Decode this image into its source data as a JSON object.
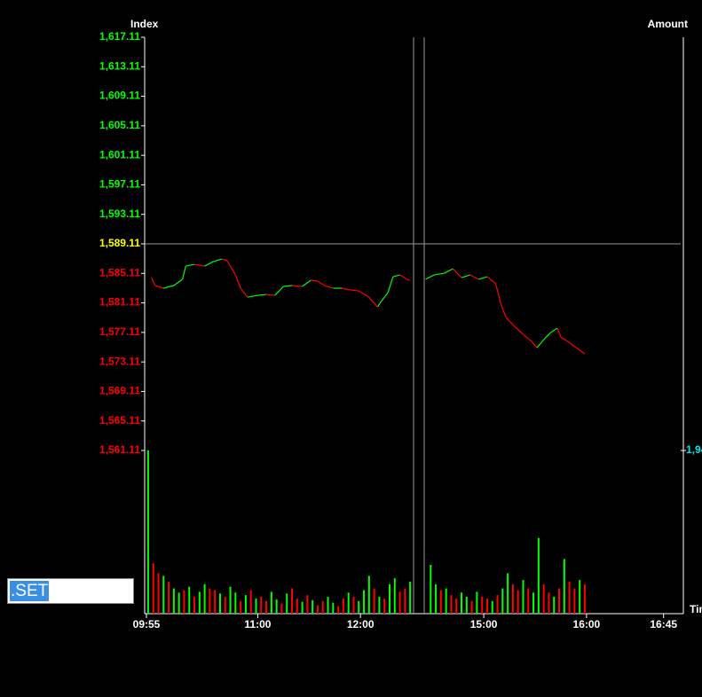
{
  "symbol": ".SET",
  "chart_data": {
    "type": "line",
    "y_axis_label": "Index",
    "y2_axis_label": "Amount",
    "x_axis_label": "Tim",
    "reference": 1589.11,
    "up_color": "#00ff00",
    "down_color": "#ff0000",
    "reference_color": "#ffff00",
    "y2_tick_color": "#00e5e5",
    "xlim": [
      0,
      312
    ],
    "xticks": [
      {
        "value": 0,
        "label": "09:55"
      },
      {
        "value": 65,
        "label": "11:00"
      },
      {
        "value": 125,
        "label": "12:00"
      },
      {
        "value": 197,
        "label": "15:00"
      },
      {
        "value": 257,
        "label": "16:00"
      },
      {
        "value": 302,
        "label": "16:45"
      }
    ],
    "ylim": [
      1561.11,
      1617.11
    ],
    "yticks": [
      {
        "value": 1617.11,
        "label": "1,617.11"
      },
      {
        "value": 1613.11,
        "label": "1,613.11"
      },
      {
        "value": 1609.11,
        "label": "1,609.11"
      },
      {
        "value": 1605.11,
        "label": "1,605.11"
      },
      {
        "value": 1601.11,
        "label": "1,601.11"
      },
      {
        "value": 1597.11,
        "label": "1,597.11"
      },
      {
        "value": 1593.11,
        "label": "1,593.11"
      },
      {
        "value": 1589.11,
        "label": "1,589.11"
      },
      {
        "value": 1585.11,
        "label": "1,585.11"
      },
      {
        "value": 1581.11,
        "label": "1,581.11"
      },
      {
        "value": 1577.11,
        "label": "1,577.11"
      },
      {
        "value": 1573.11,
        "label": "1,573.11"
      },
      {
        "value": 1569.11,
        "label": "1,569.11"
      },
      {
        "value": 1565.11,
        "label": "1,565.11"
      },
      {
        "value": 1561.11,
        "label": "1,561.11"
      }
    ],
    "y2lim": [
      0,
      1940
    ],
    "y2ticks": [
      {
        "value": 1940,
        "label": "1,94"
      }
    ],
    "x": [
      3,
      5,
      10,
      16,
      21,
      23,
      28,
      34,
      39,
      44,
      47,
      49,
      52,
      55,
      59,
      65,
      70,
      75,
      80,
      85,
      91,
      96,
      100,
      104,
      109,
      114,
      119,
      124,
      130,
      132,
      135,
      137,
      141,
      144,
      148,
      152,
      154,
      157,
      163,
      168,
      174,
      179,
      184,
      189,
      194,
      199,
      204,
      207,
      210,
      215,
      220,
      225,
      228,
      232,
      236,
      240,
      242,
      246,
      251,
      256
    ],
    "values": [
      1584.54,
      1583.46,
      1583.1,
      1583.46,
      1584.3,
      1586.1,
      1586.34,
      1586.1,
      1586.7,
      1587.06,
      1586.82,
      1586.1,
      1584.9,
      1583.1,
      1581.89,
      1582.13,
      1582.25,
      1582.13,
      1583.34,
      1583.46,
      1583.34,
      1584.18,
      1584.06,
      1583.46,
      1583.1,
      1583.1,
      1582.86,
      1582.73,
      1581.89,
      1581.29,
      1580.57,
      1581.29,
      1582.49,
      1584.66,
      1584.9,
      1584.3,
      1584.18,
      null,
      1584.3,
      1584.9,
      1585.14,
      1585.74,
      1584.54,
      1584.9,
      1584.3,
      1584.66,
      1583.7,
      1580.93,
      1579.13,
      1577.93,
      1576.85,
      1575.88,
      1575.04,
      1576.12,
      1577.09,
      1577.69,
      1576.48,
      1575.88,
      1575.04,
      1574.2
    ],
    "volume": {
      "axis": "y2",
      "x": [
        1,
        4,
        7,
        10,
        13,
        16,
        19,
        22,
        25,
        28,
        31,
        34,
        37,
        40,
        43,
        46,
        49,
        52,
        55,
        58,
        61,
        64,
        67,
        70,
        73,
        76,
        79,
        82,
        85,
        88,
        91,
        94,
        97,
        100,
        103,
        106,
        109,
        112,
        115,
        118,
        121,
        124,
        127,
        130,
        133,
        136,
        139,
        142,
        145,
        148,
        151,
        154,
        166,
        169,
        172,
        175,
        178,
        181,
        184,
        187,
        190,
        193,
        196,
        199,
        202,
        205,
        208,
        211,
        214,
        217,
        220,
        223,
        226,
        229,
        232,
        235,
        238,
        241,
        244,
        247,
        250,
        253,
        256
      ],
      "values": [
        1940,
        600,
        480,
        450,
        380,
        300,
        250,
        280,
        320,
        200,
        260,
        350,
        300,
        280,
        240,
        200,
        320,
        250,
        150,
        220,
        280,
        180,
        200,
        150,
        260,
        170,
        120,
        240,
        300,
        180,
        140,
        220,
        160,
        100,
        150,
        200,
        130,
        90,
        180,
        250,
        200,
        150,
        280,
        450,
        300,
        200,
        180,
        350,
        420,
        260,
        300,
        380,
        580,
        350,
        280,
        300,
        220,
        180,
        250,
        200,
        150,
        260,
        200,
        180,
        150,
        220,
        300,
        480,
        350,
        280,
        400,
        300,
        250,
        900,
        350,
        250,
        200,
        300,
        650,
        380,
        300,
        400,
        350
      ],
      "rising": [
        1,
        0,
        0,
        1,
        0,
        1,
        1,
        0,
        1,
        0,
        1,
        1,
        0,
        0,
        1,
        0,
        1,
        1,
        0,
        1,
        0,
        1,
        0,
        0,
        1,
        1,
        0,
        1,
        0,
        0,
        1,
        0,
        1,
        0,
        0,
        1,
        1,
        0,
        0,
        1,
        0,
        1,
        1,
        1,
        0,
        1,
        0,
        1,
        1,
        0,
        0,
        1,
        1,
        1,
        0,
        1,
        0,
        0,
        1,
        1,
        0,
        1,
        0,
        0,
        1,
        0,
        1,
        1,
        0,
        0,
        1,
        0,
        1,
        1,
        0,
        0,
        1,
        0,
        1,
        0,
        0,
        1,
        0
      ]
    }
  }
}
